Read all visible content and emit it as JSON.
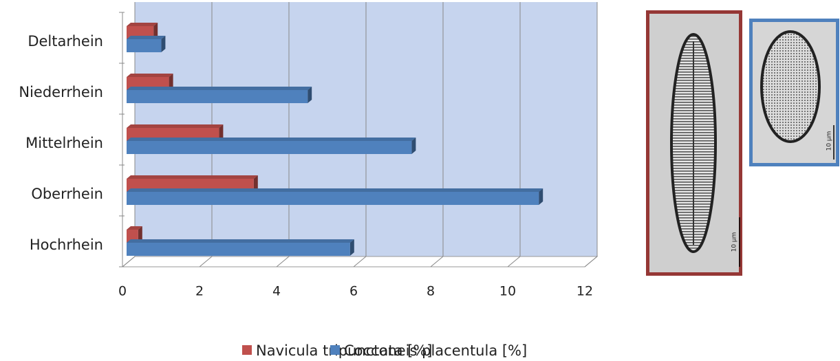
{
  "chart_data": {
    "type": "bar",
    "orientation": "horizontal",
    "categories": [
      "Hochrhein",
      "Oberrhein",
      "Mittelrhein",
      "Niederrhein",
      "Deltarhein"
    ],
    "series": [
      {
        "name": "Navicula tripunctata [%]",
        "color": "#c0504d",
        "values": [
          0.3,
          3.3,
          2.4,
          1.1,
          0.7
        ]
      },
      {
        "name": "Cocconeis placentula [%]",
        "color": "#4f81bd",
        "values": [
          5.8,
          10.7,
          7.4,
          4.7,
          0.9
        ]
      }
    ],
    "xlim": [
      0,
      12
    ],
    "xticks": [
      0,
      2,
      4,
      6,
      8,
      10,
      12
    ],
    "grid": true,
    "legend": "bottom"
  },
  "images": [
    {
      "scale_label": "10 µm",
      "frame": "#953735"
    },
    {
      "scale_label": "10 µm",
      "frame": "#4f81bd"
    }
  ]
}
